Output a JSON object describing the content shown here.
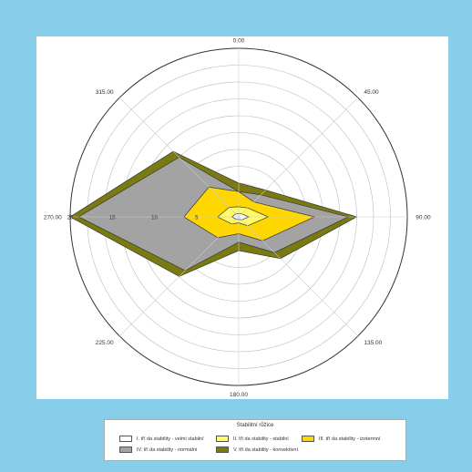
{
  "chart_data": {
    "type": "radar",
    "angular_unit": "degrees",
    "angle_direction": "clockwise",
    "zero_at": "top",
    "radial_range": [
      0,
      20
    ],
    "ring_count": 10,
    "grid": true,
    "spokes": [
      0,
      45,
      90,
      135,
      180,
      225,
      270,
      315
    ],
    "angle_labels": [
      "0.00",
      "45.00",
      "90.00",
      "135.00",
      "180.00",
      "225.00",
      "270.00",
      "315.00"
    ],
    "radial_labels": [
      "5",
      "10",
      "15",
      "20"
    ],
    "angles": [
      0,
      45,
      90,
      135,
      180,
      225,
      270,
      315
    ],
    "series": [
      {
        "name": "V. tří da stability - konvektivní",
        "color": "#7a7a12",
        "values": [
          4,
          4.5,
          14,
          7,
          4,
          10,
          20,
          11
        ]
      },
      {
        "name": "IV. tří da stability - normální",
        "color": "#a3a3a3",
        "values": [
          3,
          3.7,
          13,
          6,
          3,
          9,
          19,
          10
        ]
      },
      {
        "name": "III. tří da stability - izotermní",
        "color": "#ffd700",
        "values": [
          3,
          2.5,
          9,
          4,
          2,
          3.5,
          6.5,
          5
        ]
      },
      {
        "name": "II. tří da stability - stabilní",
        "color": "#fffb66",
        "values": [
          1.2,
          1.5,
          3.5,
          1.5,
          0.7,
          1.2,
          2.5,
          1.6
        ]
      },
      {
        "name": "I. tří da stability - velmi stabilní",
        "color": "#ffffff",
        "values": [
          0.4,
          0.5,
          1.2,
          0.5,
          0.3,
          0.4,
          0.8,
          0.5
        ]
      }
    ],
    "legend": {
      "title": "Stabilitní růžice",
      "placement": "bottom",
      "entries": [
        "I. tří da stability - velmi stabilní",
        "II. tří da stability - stabilní",
        "III. tří da stability - izotermní",
        "IV. tří da stability - normální",
        "V. tří da stability - konvektivní"
      ]
    }
  }
}
